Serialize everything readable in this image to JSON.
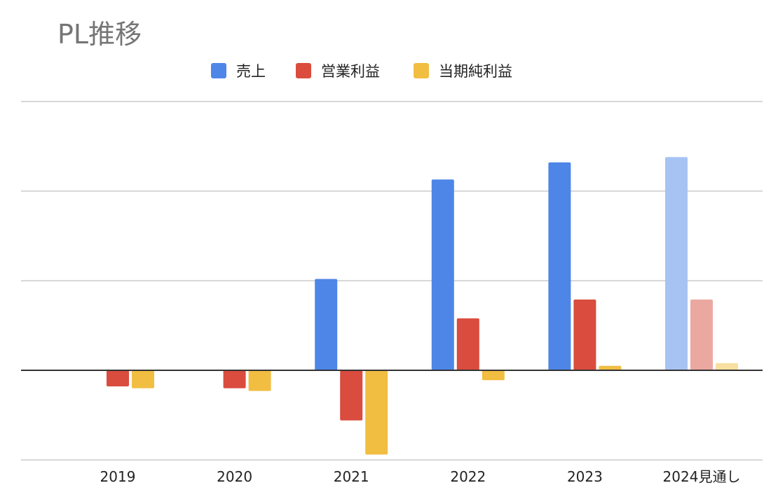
{
  "chart_data": {
    "type": "bar",
    "title": "PL推移",
    "categories": [
      "2019",
      "2020",
      "2021",
      "2022",
      "2023",
      "2024見通し"
    ],
    "series": [
      {
        "name": "売上",
        "color": "#4e86e8",
        "values": [
          0,
          0,
          1.02,
          2.13,
          2.32,
          2.38
        ]
      },
      {
        "name": "営業利益",
        "color": "#da4c3e",
        "values": [
          -0.18,
          -0.2,
          -0.56,
          0.58,
          0.79,
          0.79
        ]
      },
      {
        "name": "当期純利益",
        "color": "#f1be42",
        "values": [
          -0.2,
          -0.23,
          -0.94,
          -0.11,
          0.05,
          0.08
        ]
      }
    ],
    "projected_category_index": 5,
    "projected_colors": [
      "#a7c3f3",
      "#eba8a1",
      "#f8df9f"
    ],
    "ylim": [
      -1,
      3
    ],
    "y_gridlines": [
      -1,
      0,
      1,
      2,
      3
    ],
    "y_tick_labels_shown": false,
    "legend_position": "top",
    "grid": true
  }
}
